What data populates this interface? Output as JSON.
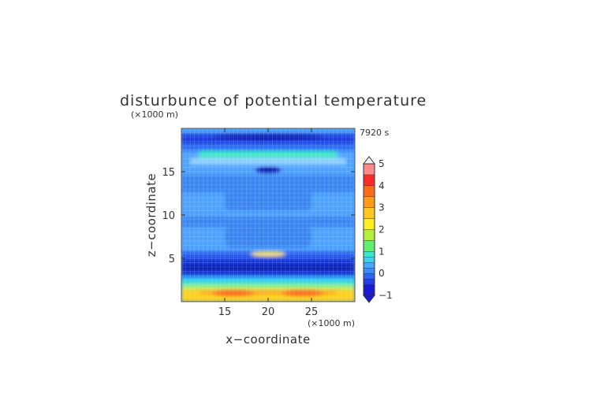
{
  "chart_data": {
    "type": "heatmap",
    "title": "disturbunce of potential temperature",
    "time_label": "7920 s",
    "xlabel": "x−coordinate",
    "ylabel": "z−coordinate",
    "x_unit": "(×1000 m)",
    "y_unit": "(×1000 m)",
    "xlim": [
      10,
      30
    ],
    "ylim": [
      0,
      20
    ],
    "x_ticks": [
      {
        "v": 15,
        "label": "15"
      },
      {
        "v": 20,
        "label": "20"
      },
      {
        "v": 25,
        "label": "25"
      }
    ],
    "y_ticks": [
      {
        "v": 5,
        "label": "5"
      },
      {
        "v": 10,
        "label": "10"
      },
      {
        "v": 15,
        "label": "15"
      }
    ],
    "colorbar": {
      "min": -1,
      "max": 5,
      "ticks": [
        {
          "v": -1,
          "label": "−1"
        },
        {
          "v": 0,
          "label": "0"
        },
        {
          "v": 1,
          "label": "1"
        },
        {
          "v": 2,
          "label": "2"
        },
        {
          "v": 3,
          "label": "3"
        },
        {
          "v": 4,
          "label": "4"
        },
        {
          "v": 5,
          "label": "5"
        }
      ]
    },
    "grid": true
  }
}
